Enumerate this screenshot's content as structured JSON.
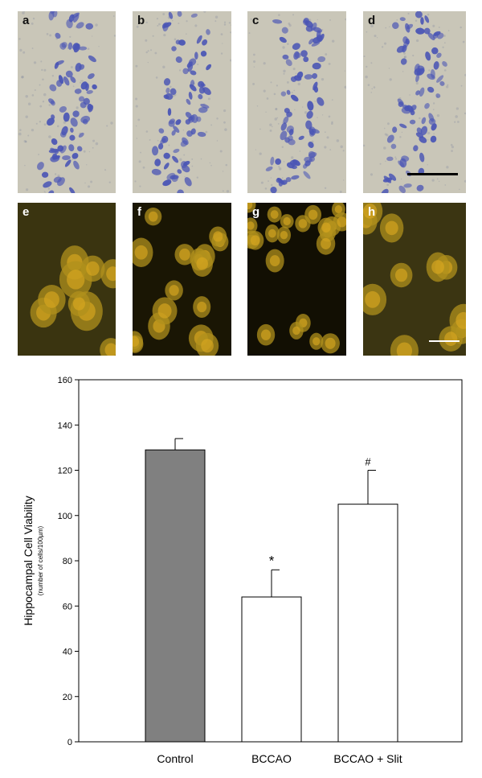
{
  "panels_top": [
    {
      "label": "a"
    },
    {
      "label": "b"
    },
    {
      "label": "c"
    },
    {
      "label": "d"
    }
  ],
  "panels_bottom": [
    {
      "label": "e"
    },
    {
      "label": "f"
    },
    {
      "label": "g"
    },
    {
      "label": "h"
    }
  ],
  "colors": {
    "nissl_bg": "#c9c6b8",
    "nissl_cell": "#4a55b5",
    "fluor_bg": "#1e1a06",
    "fluor_cell": "#d8a820",
    "control_bar": "#808080",
    "other_bar": "#ffffff"
  },
  "chart_data": {
    "type": "bar",
    "categories": [
      "Control",
      "BCCAO",
      "BCCAO + Slit"
    ],
    "values": [
      129,
      64,
      105
    ],
    "errors": [
      5,
      12,
      15
    ],
    "annotations": [
      "",
      "*",
      "#"
    ],
    "ylabel": "Hippocampal Cell Viability",
    "ylabel_sub": "(number of cells/100µm)",
    "ylim": [
      0,
      160
    ],
    "yticks": [
      0,
      20,
      40,
      60,
      80,
      100,
      120,
      140,
      160
    ],
    "grid": false
  }
}
